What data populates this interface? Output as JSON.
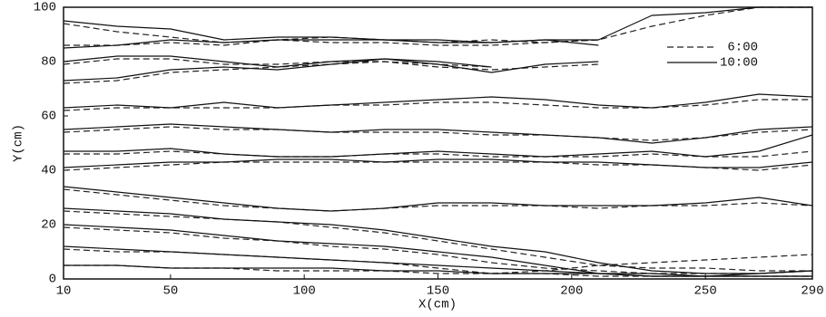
{
  "chart_data": {
    "type": "line",
    "x_label": "X(cm)",
    "y_label": "Y(cm)",
    "x": [
      10,
      30,
      50,
      70,
      90,
      110,
      130,
      150,
      170,
      190,
      210,
      230,
      250,
      270,
      290
    ],
    "xlim": [
      10,
      290
    ],
    "xticks": [
      10,
      50,
      100,
      150,
      200,
      250,
      290
    ],
    "ylim": [
      0,
      100
    ],
    "yticks": [
      0,
      20,
      40,
      60,
      80,
      100
    ],
    "legend": "upper right",
    "series": [
      {
        "name": "6:00",
        "color": "#222222",
        "dash": "7,4",
        "lines": [
          [
            94,
            91,
            89,
            87,
            88,
            89,
            88,
            87,
            88,
            87,
            88,
            93,
            97,
            100,
            100
          ],
          [
            86,
            86,
            87,
            86,
            88,
            87,
            87,
            86,
            86,
            87,
            88,
            null,
            null,
            null,
            null
          ],
          [
            79,
            81,
            81,
            79,
            79,
            80,
            80,
            78,
            77,
            78,
            79,
            null,
            null,
            null,
            null
          ],
          [
            72,
            73,
            76,
            77,
            78,
            79,
            80,
            79,
            78,
            null,
            null,
            null,
            null,
            null,
            null
          ],
          [
            62,
            63,
            63,
            63,
            63,
            64,
            64,
            65,
            65,
            64,
            63,
            63,
            64,
            66,
            66
          ],
          [
            54,
            55,
            56,
            55,
            55,
            54,
            54,
            54,
            53,
            53,
            52,
            51,
            52,
            54,
            55
          ],
          [
            46,
            46,
            47,
            46,
            45,
            45,
            46,
            46,
            45,
            45,
            45,
            46,
            45,
            45,
            47
          ],
          [
            40,
            41,
            42,
            43,
            43,
            43,
            43,
            43,
            43,
            43,
            42,
            42,
            41,
            40,
            42
          ],
          [
            33,
            31,
            29,
            27,
            26,
            25,
            26,
            27,
            27,
            27,
            26,
            27,
            27,
            28,
            27
          ],
          [
            25,
            24,
            23,
            22,
            21,
            19,
            17,
            14,
            11,
            8,
            5,
            4,
            4,
            3,
            3
          ],
          [
            19,
            18,
            17,
            15,
            14,
            12,
            11,
            9,
            6,
            4,
            3,
            2,
            2,
            2,
            3
          ],
          [
            11,
            10,
            10,
            9,
            8,
            7,
            6,
            4,
            2,
            3,
            5,
            6,
            7,
            8,
            9
          ],
          [
            5,
            5,
            4,
            4,
            3,
            3,
            3,
            2,
            2,
            2,
            1,
            1,
            1,
            1,
            1
          ]
        ]
      },
      {
        "name": "10:00",
        "color": "#111111",
        "dash": "",
        "lines": [
          [
            95,
            93,
            92,
            88,
            89,
            89,
            88,
            88,
            87,
            88,
            88,
            97,
            98,
            100,
            100
          ],
          [
            85,
            86,
            88,
            87,
            88,
            88,
            88,
            87,
            87,
            88,
            86,
            null,
            null,
            null,
            null
          ],
          [
            80,
            82,
            82,
            80,
            78,
            80,
            81,
            79,
            76,
            79,
            80,
            null,
            null,
            null,
            null
          ],
          [
            73,
            74,
            77,
            78,
            77,
            79,
            81,
            80,
            78,
            null,
            null,
            null,
            null,
            null,
            null
          ],
          [
            63,
            64,
            63,
            65,
            63,
            64,
            65,
            66,
            67,
            66,
            64,
            63,
            65,
            68,
            67
          ],
          [
            55,
            56,
            57,
            56,
            55,
            54,
            55,
            55,
            54,
            53,
            52,
            50,
            52,
            55,
            56
          ],
          [
            47,
            47,
            48,
            46,
            45,
            45,
            46,
            47,
            46,
            45,
            46,
            47,
            45,
            47,
            53
          ],
          [
            41,
            42,
            43,
            43,
            44,
            44,
            43,
            44,
            44,
            43,
            43,
            42,
            41,
            41,
            43
          ],
          [
            34,
            32,
            30,
            28,
            26,
            25,
            26,
            28,
            28,
            27,
            27,
            27,
            28,
            30,
            27
          ],
          [
            26,
            25,
            24,
            22,
            21,
            20,
            18,
            15,
            12,
            10,
            6,
            3,
            2,
            2,
            3
          ],
          [
            20,
            19,
            18,
            16,
            14,
            13,
            12,
            10,
            8,
            5,
            2,
            1,
            1,
            2,
            3
          ],
          [
            12,
            11,
            10,
            9,
            8,
            7,
            6,
            5,
            4,
            3,
            2,
            2,
            1,
            1,
            1
          ],
          [
            5,
            5,
            4,
            4,
            4,
            4,
            3,
            3,
            2,
            2,
            2,
            1,
            1,
            1,
            1
          ]
        ]
      }
    ]
  }
}
